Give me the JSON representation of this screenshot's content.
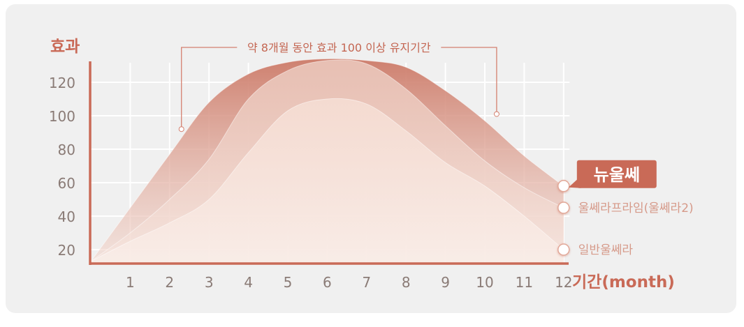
{
  "chart_data": {
    "type": "area",
    "ylabel": "효과",
    "xlabel": "기간(month)",
    "ylim": [
      10,
      135
    ],
    "xlim": [
      0,
      12.2
    ],
    "yticks": [
      20,
      40,
      60,
      80,
      100,
      120
    ],
    "xticks": [
      1,
      2,
      3,
      4,
      5,
      6,
      7,
      8,
      9,
      10,
      11,
      12
    ],
    "grid": true,
    "annotation": {
      "text": "약 8개월 동안 효과 100 이상 유지기간",
      "x_start": 2.3,
      "x_end": 10.3,
      "start_marker": {
        "x": 2.3,
        "y": 92
      },
      "end_marker": {
        "x": 10.3,
        "y": 101
      }
    },
    "series": [
      {
        "name": "뉴울쎄",
        "label_style": "badge",
        "color": "#cf7f6d",
        "x": [
          0,
          1,
          2,
          3,
          4,
          5,
          6,
          7,
          8,
          9,
          10,
          11,
          12
        ],
        "y": [
          13,
          45,
          77,
          108,
          125,
          132,
          134,
          133,
          129,
          115,
          97,
          76,
          58
        ]
      },
      {
        "name": "울쎄라프라임(울쎄라2)",
        "label_style": "text",
        "color": "#e5b5a6",
        "x": [
          0,
          1,
          2,
          3,
          4,
          5,
          6,
          7,
          8,
          9,
          10,
          11,
          12
        ],
        "y": [
          13,
          30,
          50,
          74,
          110,
          127,
          133,
          131,
          116,
          94,
          73,
          57,
          45
        ]
      },
      {
        "name": "일반울쎄라",
        "label_style": "text",
        "color": "#f2d8cd",
        "x": [
          0,
          1,
          2,
          3,
          4,
          5,
          6,
          7,
          8,
          9,
          10,
          11,
          12
        ],
        "y": [
          13,
          25,
          36,
          50,
          78,
          103,
          110,
          107,
          91,
          72,
          58,
          40,
          20
        ]
      }
    ]
  },
  "colors": {
    "panel_bg": "#f0f0f0",
    "axis": "#c96a57",
    "title": "#c96a57",
    "tick_label": "#8a7b76",
    "grid": "#ffffff",
    "badge_bg": "#c96a57",
    "badge_text": "#ffffff",
    "series_label": "#d69a8a"
  }
}
